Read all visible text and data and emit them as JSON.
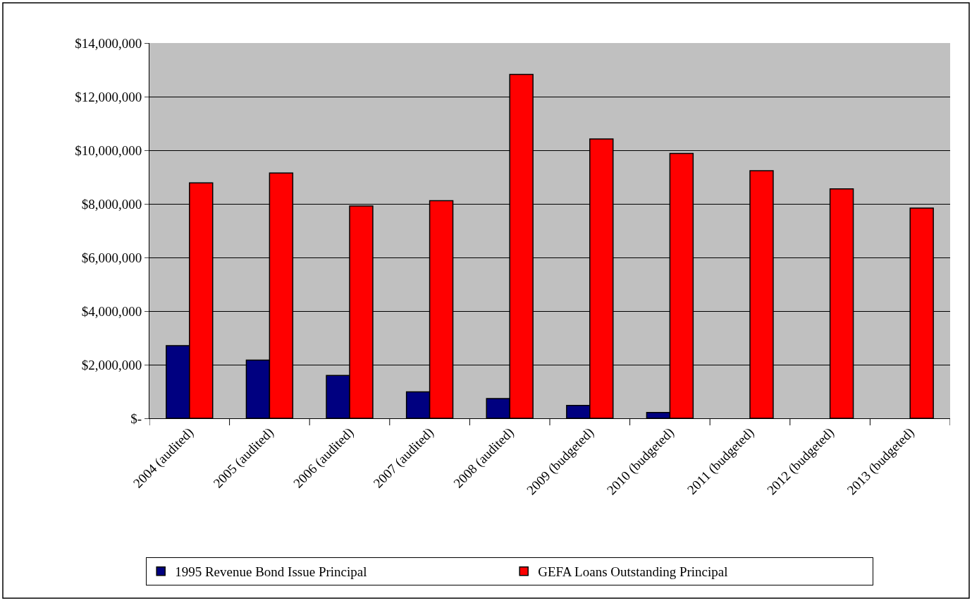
{
  "chart_data": {
    "type": "bar",
    "categories": [
      "2004 (audited)",
      "2005 (audited)",
      "2006 (audited)",
      "2007 (audited)",
      "2008 (audited)",
      "2009 (budgeted)",
      "2010 (budgeted)",
      "2011 (budgeted)",
      "2012 (budgeted)",
      "2013 (budgeted)"
    ],
    "series": [
      {
        "name": "1995 Revenue Bond Issue Principal",
        "color": "#000080",
        "values": [
          2710000,
          2170000,
          1600000,
          990000,
          740000,
          480000,
          220000,
          null,
          null,
          null
        ]
      },
      {
        "name": "GEFA Loans Outstanding Principal",
        "color": "#ff0000",
        "values": [
          8780000,
          9150000,
          7920000,
          8120000,
          12830000,
          10420000,
          9880000,
          9240000,
          8560000,
          7840000
        ]
      }
    ],
    "ylim": [
      0,
      14000000
    ],
    "yticks": [
      {
        "value": 0,
        "label": "$-"
      },
      {
        "value": 2000000,
        "label": "$2,000,000"
      },
      {
        "value": 4000000,
        "label": "$4,000,000"
      },
      {
        "value": 6000000,
        "label": "$6,000,000"
      },
      {
        "value": 8000000,
        "label": "$8,000,000"
      },
      {
        "value": 10000000,
        "label": "$10,000,000"
      },
      {
        "value": 12000000,
        "label": "$12,000,000"
      },
      {
        "value": 14000000,
        "label": "$14,000,000"
      }
    ],
    "grid": "y",
    "legend": "bottom"
  }
}
